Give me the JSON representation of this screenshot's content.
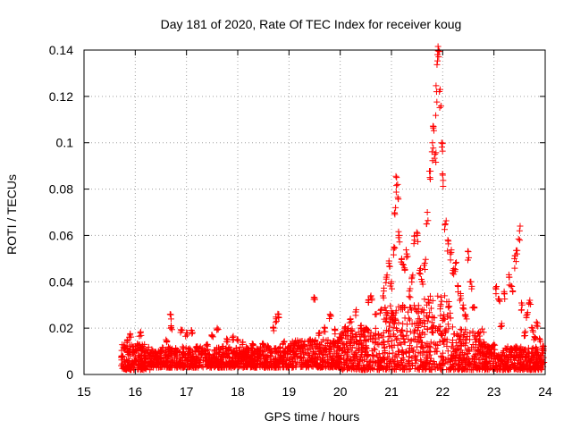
{
  "chart_data": {
    "type": "scatter",
    "title": "Day 181 of 2020, Rate Of TEC Index for receiver koug",
    "xlabel": "GPS time / hours",
    "ylabel": "ROTI / TECUs",
    "xlim": [
      15,
      24
    ],
    "ylim": [
      0,
      0.14
    ],
    "xticks": [
      "15",
      "16",
      "17",
      "18",
      "19",
      "20",
      "21",
      "22",
      "23",
      "24"
    ],
    "yticks": [
      "0",
      "0.02",
      "0.04",
      "0.06",
      "0.08",
      "0.1",
      "0.12",
      "0.14"
    ],
    "grid": true,
    "marker": "+",
    "color": "#ff0000",
    "series": [
      {
        "name": "ROTI",
        "points": [
          [
            15.75,
            0.008
          ],
          [
            15.8,
            0.012
          ],
          [
            15.85,
            0.015
          ],
          [
            15.9,
            0.017
          ],
          [
            15.95,
            0.01
          ],
          [
            16.0,
            0.006
          ],
          [
            16.05,
            0.013
          ],
          [
            16.1,
            0.018
          ],
          [
            16.15,
            0.012
          ],
          [
            16.2,
            0.007
          ],
          [
            16.3,
            0.009
          ],
          [
            16.4,
            0.008
          ],
          [
            16.5,
            0.01
          ],
          [
            16.6,
            0.015
          ],
          [
            16.68,
            0.026
          ],
          [
            16.7,
            0.021
          ],
          [
            16.8,
            0.01
          ],
          [
            16.9,
            0.019
          ],
          [
            17.0,
            0.018
          ],
          [
            17.1,
            0.019
          ],
          [
            17.2,
            0.012
          ],
          [
            17.3,
            0.01
          ],
          [
            17.4,
            0.013
          ],
          [
            17.5,
            0.017
          ],
          [
            17.6,
            0.02
          ],
          [
            17.7,
            0.012
          ],
          [
            17.8,
            0.015
          ],
          [
            17.9,
            0.016
          ],
          [
            18.0,
            0.015
          ],
          [
            18.1,
            0.014
          ],
          [
            18.2,
            0.011
          ],
          [
            18.3,
            0.013
          ],
          [
            18.4,
            0.01
          ],
          [
            18.5,
            0.013
          ],
          [
            18.6,
            0.012
          ],
          [
            18.7,
            0.02
          ],
          [
            18.75,
            0.024
          ],
          [
            18.8,
            0.026
          ],
          [
            18.9,
            0.014
          ],
          [
            19.0,
            0.012
          ],
          [
            19.1,
            0.013
          ],
          [
            19.2,
            0.012
          ],
          [
            19.3,
            0.013
          ],
          [
            19.4,
            0.015
          ],
          [
            19.5,
            0.033
          ],
          [
            19.6,
            0.018
          ],
          [
            19.7,
            0.02
          ],
          [
            19.8,
            0.026
          ],
          [
            19.9,
            0.019
          ],
          [
            20.0,
            0.016
          ],
          [
            20.1,
            0.02
          ],
          [
            20.2,
            0.024
          ],
          [
            20.3,
            0.027
          ],
          [
            20.4,
            0.021
          ],
          [
            20.5,
            0.02
          ],
          [
            20.55,
            0.032
          ],
          [
            20.6,
            0.034
          ],
          [
            20.7,
            0.026
          ],
          [
            20.8,
            0.028
          ],
          [
            20.85,
            0.036
          ],
          [
            20.9,
            0.042
          ],
          [
            20.95,
            0.048
          ],
          [
            21.0,
            0.04
          ],
          [
            21.05,
            0.055
          ],
          [
            21.08,
            0.072
          ],
          [
            21.1,
            0.085
          ],
          [
            21.12,
            0.082
          ],
          [
            21.15,
            0.06
          ],
          [
            21.2,
            0.05
          ],
          [
            21.25,
            0.046
          ],
          [
            21.3,
            0.052
          ],
          [
            21.35,
            0.036
          ],
          [
            21.4,
            0.042
          ],
          [
            21.45,
            0.058
          ],
          [
            21.5,
            0.06
          ],
          [
            21.55,
            0.045
          ],
          [
            21.6,
            0.04
          ],
          [
            21.65,
            0.048
          ],
          [
            21.7,
            0.07
          ],
          [
            21.75,
            0.085
          ],
          [
            21.8,
            0.1
          ],
          [
            21.82,
            0.107
          ],
          [
            21.85,
            0.095
          ],
          [
            21.88,
            0.122
          ],
          [
            21.9,
            0.138
          ],
          [
            21.92,
            0.14
          ],
          [
            21.95,
            0.123
          ],
          [
            21.98,
            0.1
          ],
          [
            22.0,
            0.086
          ],
          [
            22.05,
            0.065
          ],
          [
            22.1,
            0.058
          ],
          [
            22.15,
            0.052
          ],
          [
            22.2,
            0.045
          ],
          [
            22.25,
            0.048
          ],
          [
            22.3,
            0.038
          ],
          [
            22.35,
            0.034
          ],
          [
            22.4,
            0.03
          ],
          [
            22.45,
            0.025
          ],
          [
            22.5,
            0.053
          ],
          [
            22.55,
            0.04
          ],
          [
            22.6,
            0.029
          ],
          [
            22.7,
            0.018
          ],
          [
            22.8,
            0.014
          ],
          [
            22.9,
            0.012
          ],
          [
            23.0,
            0.013
          ],
          [
            23.05,
            0.038
          ],
          [
            23.1,
            0.032
          ],
          [
            23.15,
            0.022
          ],
          [
            23.2,
            0.035
          ],
          [
            23.3,
            0.042
          ],
          [
            23.35,
            0.038
          ],
          [
            23.4,
            0.05
          ],
          [
            23.45,
            0.052
          ],
          [
            23.5,
            0.062
          ],
          [
            23.55,
            0.03
          ],
          [
            23.6,
            0.018
          ],
          [
            23.65,
            0.026
          ],
          [
            23.7,
            0.032
          ],
          [
            23.75,
            0.02
          ],
          [
            23.8,
            0.016
          ],
          [
            23.85,
            0.022
          ],
          [
            23.9,
            0.015
          ],
          [
            23.95,
            0.012
          ]
        ]
      }
    ],
    "dense_band": [
      {
        "x_from": 15.72,
        "x_to": 16.3,
        "y_low": 0.002,
        "y_high": 0.013
      },
      {
        "x_from": 16.3,
        "x_to": 17.0,
        "y_low": 0.003,
        "y_high": 0.012
      },
      {
        "x_from": 17.0,
        "x_to": 18.0,
        "y_low": 0.003,
        "y_high": 0.012
      },
      {
        "x_from": 18.0,
        "x_to": 19.0,
        "y_low": 0.003,
        "y_high": 0.012
      },
      {
        "x_from": 19.0,
        "x_to": 20.0,
        "y_low": 0.003,
        "y_high": 0.015
      },
      {
        "x_from": 20.0,
        "x_to": 20.8,
        "y_low": 0.002,
        "y_high": 0.02
      },
      {
        "x_from": 20.8,
        "x_to": 21.6,
        "y_low": 0.002,
        "y_high": 0.03
      },
      {
        "x_from": 21.6,
        "x_to": 22.2,
        "y_low": 0.002,
        "y_high": 0.034
      },
      {
        "x_from": 22.2,
        "x_to": 22.8,
        "y_low": 0.002,
        "y_high": 0.02
      },
      {
        "x_from": 22.8,
        "x_to": 23.98,
        "y_low": 0.002,
        "y_high": 0.012
      }
    ]
  }
}
